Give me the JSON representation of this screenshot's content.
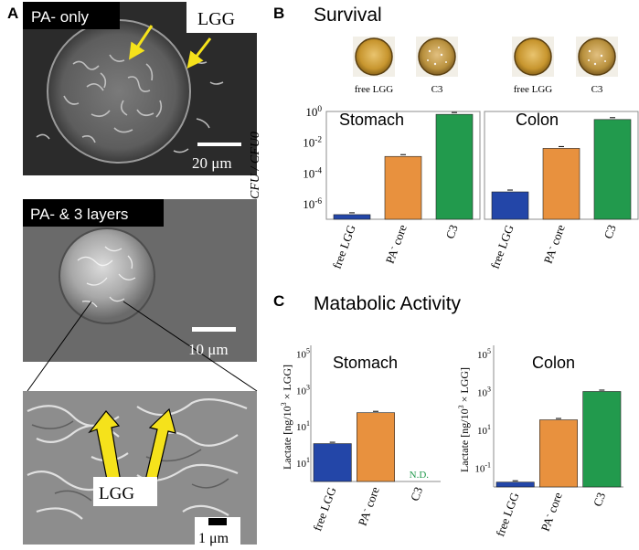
{
  "figure": {
    "panel_letters": {
      "a": "A",
      "b": "B",
      "c": "C"
    },
    "panel_a": {
      "img1_label": "PA- only",
      "img1_lgg": "LGG",
      "img1_scale": "20 μm",
      "img2_label": "PA- & 3 layers",
      "img2_scale": "10 μm",
      "img3_lgg": "LGG",
      "img3_scale": "1 μm"
    },
    "panel_b_title": "Survival",
    "panel_c_title": "Matabolic Activity",
    "petri_labels": [
      "free LGG",
      "C3",
      "free LGG",
      "C3"
    ],
    "colors": {
      "blue": "#2346a8",
      "orange": "#e8913e",
      "green": "#229a4d",
      "arrow": "#f5e21b",
      "nd": "#229a4d"
    }
  },
  "chart_data": [
    {
      "type": "bar",
      "panel": "B",
      "ylabel": "CFU / CFU0",
      "yscale": "log",
      "ylim": [
        1e-07,
        1
      ],
      "yticks": [
        "10^0",
        "10^-2",
        "10^-4",
        "10^-6"
      ],
      "groups": [
        {
          "name": "Stomach",
          "categories": [
            "free LGG",
            "PA- core",
            "C3"
          ],
          "values": [
            2e-07,
            0.0012,
            0.65
          ],
          "colors": [
            "#2346a8",
            "#e8913e",
            "#229a4d"
          ]
        },
        {
          "name": "Colon",
          "categories": [
            "free LGG",
            "PA- core",
            "C3"
          ],
          "values": [
            6e-06,
            0.004,
            0.3
          ],
          "colors": [
            "#2346a8",
            "#e8913e",
            "#229a4d"
          ]
        }
      ]
    },
    {
      "type": "bar",
      "panel": "C",
      "title": "Stomach",
      "ylabel": "Lactate [ng/10^3 × LGG]",
      "yscale": "log",
      "ylim": [
        0.01,
        300000
      ],
      "yticks": [
        "10^5",
        "10^3",
        "10^1",
        "10^1"
      ],
      "categories": [
        "free LGG",
        "PA- core",
        "C3"
      ],
      "values": [
        1.2,
        60,
        null
      ],
      "colors": [
        "#2346a8",
        "#e8913e",
        "#229a4d"
      ],
      "annotation": "N.D."
    },
    {
      "type": "bar",
      "panel": "C",
      "title": "Colon",
      "ylabel": "Lactate [ng/10^3 × LGG]",
      "yscale": "log",
      "ylim": [
        0.01,
        300000
      ],
      "yticks": [
        "10^5",
        "10^3",
        "10^1",
        "10^-1"
      ],
      "categories": [
        "free LGG",
        "PA- core",
        "C3"
      ],
      "values": [
        0.018,
        35,
        1100
      ],
      "colors": [
        "#2346a8",
        "#e8913e",
        "#229a4d"
      ]
    }
  ]
}
